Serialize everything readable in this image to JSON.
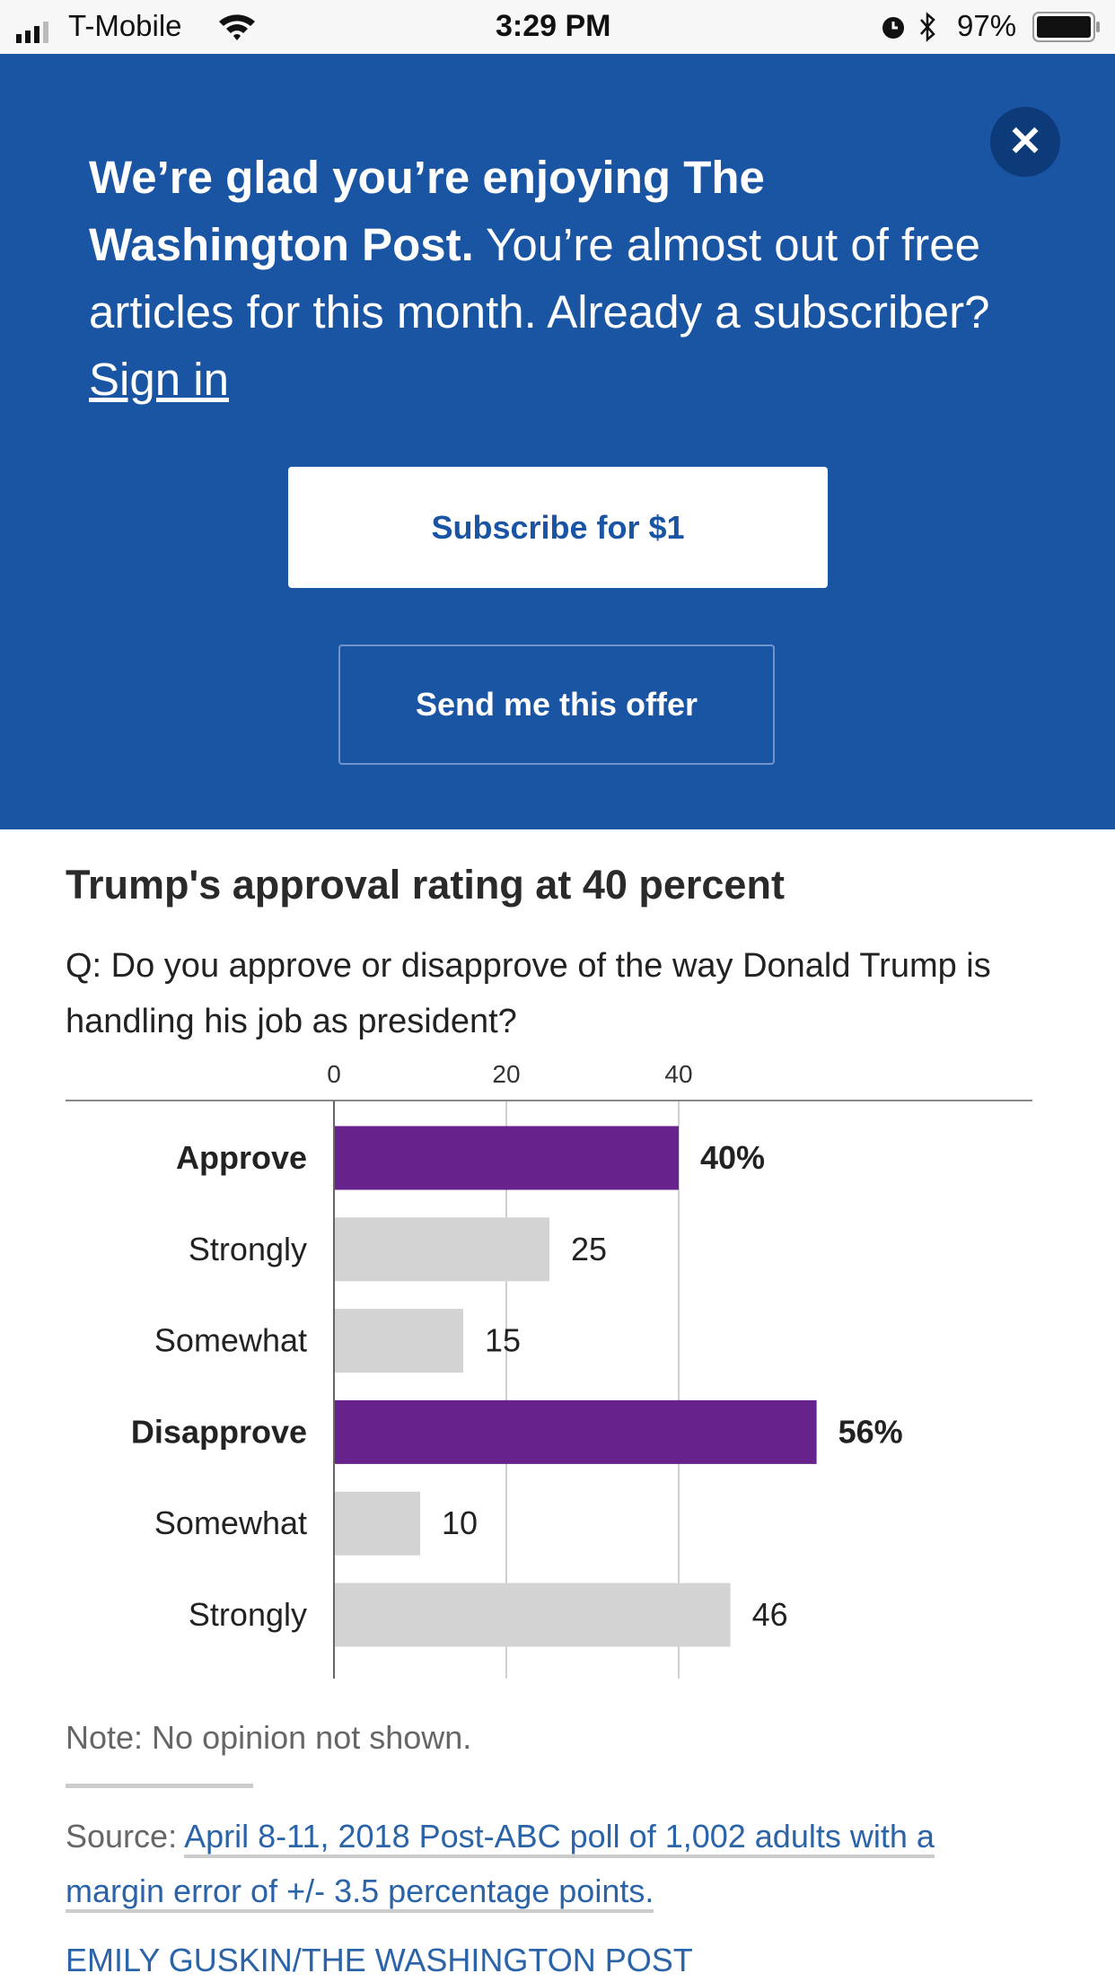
{
  "status_bar": {
    "carrier": "T-Mobile",
    "time": "3:29 PM",
    "battery": "97%"
  },
  "banner": {
    "headline_bold": "We’re glad you’re enjoying The Washington Post.",
    "headline_text": " You’re almost out of free articles for this month. Already a subscriber? ",
    "sign_in": "Sign in",
    "subscribe_label": "Subscribe for $1",
    "offer_label": "Send me this offer",
    "close_label": "✕"
  },
  "article": {
    "chart_title": "Trump's approval rating at 40 percent",
    "question": "Q: Do you approve or disapprove of the way Donald Trump is handling his job as president?",
    "note": "Note: No opinion not shown.",
    "source_label": "Source: ",
    "source_link": "April 8-11, 2018 Post-ABC poll of 1,002 adults with a margin error of +/- 3.5 percentage points.",
    "credit": "EMILY GUSKIN/THE WASHINGTON POST"
  },
  "chart_data": {
    "type": "bar",
    "title": "Trump's approval rating at 40 percent",
    "categories": [
      "Approve",
      "Strongly",
      "Somewhat",
      "Disapprove",
      "Somewhat",
      "Strongly"
    ],
    "values": [
      40,
      25,
      15,
      56,
      10,
      46
    ],
    "value_labels": [
      "40%",
      "25",
      "15",
      "56%",
      "10",
      "46"
    ],
    "bold": [
      true,
      false,
      false,
      true,
      false,
      false
    ],
    "xticks": [
      "0",
      "20",
      "40"
    ],
    "xtick_values": [
      0,
      20,
      40
    ],
    "xlim": [
      0,
      60
    ],
    "colors": {
      "main": "#68228b",
      "sub": "#d3d3d3"
    }
  }
}
